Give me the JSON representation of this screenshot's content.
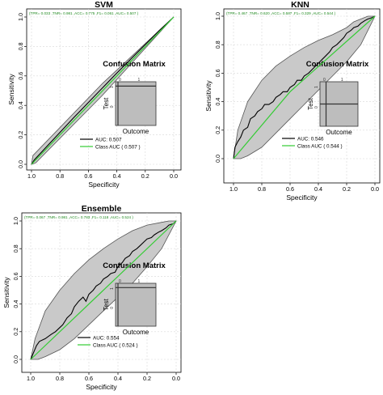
{
  "chart_data": [
    {
      "type": "line",
      "title": "SVM",
      "xlabel": "Specificity",
      "ylabel": "Sensitivity",
      "xlim": [
        1.0,
        0.0
      ],
      "ylim": [
        0.0,
        1.0
      ],
      "x_ticks": [
        "1.0",
        "0.8",
        "0.6",
        "0.4",
        "0.2",
        "0.0"
      ],
      "y_ticks": [
        "0.0",
        "0.2",
        "0.4",
        "0.6",
        "0.8",
        "1.0"
      ],
      "grid": true,
      "metrics_text": "(TPR= 0.033 ,TNR= 0.981 ,ACC= 0.775 ,F1= 0.061 ,AUC= 0.507 )",
      "confusion_matrix": {
        "title": "Confusion Matrix",
        "xlabel": "Outcome",
        "ylabel": "Test",
        "col_labels": [
          "0",
          "1"
        ],
        "row_labels": [
          "1",
          "0"
        ],
        "col_split": 0.06,
        "row_split": 0.1
      },
      "legend": [
        {
          "label": "AUC:  0.507",
          "color": "#000000"
        },
        {
          "label": "Class AUC ( 0.507 )",
          "color": "#33cc33"
        }
      ],
      "legend_position": "bottom-right",
      "series": [
        {
          "name": "AUC:  0.507",
          "color": "#000000",
          "spec": [
            1.0,
            0.98,
            0.7,
            0.4,
            0.1,
            0.0
          ],
          "sens": [
            0.0,
            0.03,
            0.32,
            0.62,
            0.91,
            1.0
          ]
        },
        {
          "name": "Class AUC ( 0.507 )",
          "color": "#33cc33",
          "spec": [
            1.0,
            0.0
          ],
          "sens": [
            0.0,
            1.0
          ]
        }
      ],
      "ci_upper": {
        "spec": [
          1.0,
          0.99,
          0.5,
          0.0
        ],
        "sens": [
          0.0,
          0.06,
          0.55,
          1.0
        ]
      },
      "ci_lower": {
        "spec": [
          1.0,
          0.97,
          0.5,
          0.0
        ],
        "sens": [
          0.0,
          0.01,
          0.47,
          1.0
        ]
      }
    },
    {
      "type": "line",
      "title": "KNN",
      "xlabel": "Specificity",
      "ylabel": "Sensitivity",
      "xlim": [
        1.0,
        0.0
      ],
      "ylim": [
        0.0,
        1.0
      ],
      "x_ticks": [
        "1.0",
        "0.8",
        "0.6",
        "0.4",
        "0.2",
        "0.0"
      ],
      "y_ticks": [
        "0.0",
        "0.2",
        "0.4",
        "0.6",
        "0.8",
        "1.0"
      ],
      "grid": true,
      "metrics_text": "(TPR= 0.467 ,TNR= 0.620 ,ACC= 0.587 ,F1= 0.329 ,AUC= 0.544 )",
      "confusion_matrix": {
        "title": "Confusion Matrix",
        "xlabel": "Outcome",
        "ylabel": "Test",
        "col_labels": [
          "0",
          "1"
        ],
        "row_labels": [
          "1",
          "0"
        ],
        "col_split": 0.16,
        "row_split": 0.5
      },
      "legend": [
        {
          "label": "AUC:  0.546",
          "color": "#000000"
        },
        {
          "label": "Class AUC ( 0.544 )",
          "color": "#33cc33"
        }
      ],
      "legend_position": "bottom-right",
      "series": [
        {
          "name": "AUC:  0.546",
          "color": "#000000",
          "spec": [
            1.0,
            0.99,
            0.97,
            0.95,
            0.93,
            0.9,
            0.88,
            0.85,
            0.83,
            0.8,
            0.78,
            0.75,
            0.72,
            0.7,
            0.67,
            0.65,
            0.62,
            0.6,
            0.57,
            0.55,
            0.52,
            0.5,
            0.47,
            0.45,
            0.42,
            0.4,
            0.37,
            0.35,
            0.32,
            0.3,
            0.27,
            0.25,
            0.22,
            0.2,
            0.17,
            0.15,
            0.12,
            0.1,
            0.07,
            0.05,
            0.02,
            0.0
          ],
          "sens": [
            0.0,
            0.08,
            0.12,
            0.15,
            0.2,
            0.22,
            0.28,
            0.3,
            0.33,
            0.35,
            0.38,
            0.38,
            0.4,
            0.43,
            0.45,
            0.47,
            0.47,
            0.5,
            0.52,
            0.55,
            0.55,
            0.58,
            0.6,
            0.62,
            0.65,
            0.67,
            0.7,
            0.72,
            0.75,
            0.78,
            0.8,
            0.82,
            0.85,
            0.88,
            0.9,
            0.92,
            0.93,
            0.95,
            0.97,
            0.98,
            0.99,
            1.0
          ]
        },
        {
          "name": "Class AUC ( 0.544 )",
          "color": "#33cc33",
          "spec": [
            1.0,
            0.6,
            0.0
          ],
          "sens": [
            0.0,
            0.47,
            1.0
          ]
        }
      ],
      "ci_upper": {
        "spec": [
          1.0,
          0.97,
          0.9,
          0.8,
          0.7,
          0.6,
          0.5,
          0.4,
          0.3,
          0.2,
          0.15,
          0.1,
          0.05,
          0.0
        ],
        "sens": [
          0.0,
          0.2,
          0.4,
          0.55,
          0.65,
          0.72,
          0.78,
          0.83,
          0.87,
          0.92,
          0.96,
          0.98,
          1.0,
          1.0
        ]
      },
      "ci_lower": {
        "spec": [
          1.0,
          0.95,
          0.9,
          0.8,
          0.7,
          0.6,
          0.5,
          0.4,
          0.3,
          0.2,
          0.1,
          0.05,
          0.0
        ],
        "sens": [
          0.0,
          0.0,
          0.02,
          0.08,
          0.18,
          0.28,
          0.38,
          0.48,
          0.58,
          0.68,
          0.8,
          0.9,
          1.0
        ]
      }
    },
    {
      "type": "line",
      "title": "Ensemble",
      "xlabel": "Specificity",
      "ylabel": "Sensitivity",
      "xlim": [
        1.0,
        0.0
      ],
      "ylim": [
        0.0,
        1.0
      ],
      "x_ticks": [
        "1.0",
        "0.8",
        "0.6",
        "0.4",
        "0.2",
        "0.0"
      ],
      "y_ticks": [
        "0.0",
        "0.2",
        "0.4",
        "0.6",
        "0.8",
        "1.0"
      ],
      "grid": true,
      "metrics_text": "(TPR= 0.067 ,TNR= 0.981 ,ACC= 0.783 ,F1= 0.118 ,AUC= 0.524 )",
      "confusion_matrix": {
        "title": "Confusion Matrix",
        "xlabel": "Outcome",
        "ylabel": "Test",
        "col_labels": [
          "0",
          "1"
        ],
        "row_labels": [
          "1",
          "0"
        ],
        "col_split": 0.06,
        "row_split": 0.1
      },
      "legend": [
        {
          "label": "AUC:  0.554",
          "color": "#000000"
        },
        {
          "label": "Class AUC ( 0.524 )",
          "color": "#33cc33"
        }
      ],
      "legend_position": "bottom-right",
      "series": [
        {
          "name": "AUC:  0.554",
          "color": "#000000",
          "spec": [
            1.0,
            0.98,
            0.96,
            0.94,
            0.9,
            0.86,
            0.83,
            0.8,
            0.78,
            0.75,
            0.72,
            0.7,
            0.67,
            0.64,
            0.62,
            0.6,
            0.57,
            0.55,
            0.52,
            0.5,
            0.47,
            0.45,
            0.42,
            0.4,
            0.37,
            0.35,
            0.32,
            0.3,
            0.27,
            0.25,
            0.22,
            0.2,
            0.17,
            0.15,
            0.12,
            0.1,
            0.07,
            0.05,
            0.02,
            0.0
          ],
          "sens": [
            0.0,
            0.05,
            0.1,
            0.13,
            0.15,
            0.18,
            0.2,
            0.23,
            0.25,
            0.3,
            0.33,
            0.38,
            0.42,
            0.45,
            0.42,
            0.47,
            0.5,
            0.53,
            0.55,
            0.58,
            0.6,
            0.62,
            0.63,
            0.67,
            0.7,
            0.73,
            0.75,
            0.78,
            0.8,
            0.82,
            0.85,
            0.87,
            0.88,
            0.9,
            0.92,
            0.93,
            0.95,
            0.97,
            0.98,
            1.0
          ]
        },
        {
          "name": "Class AUC ( 0.524 )",
          "color": "#33cc33",
          "spec": [
            1.0,
            0.0
          ],
          "sens": [
            0.0,
            1.0
          ]
        }
      ],
      "ci_upper": {
        "spec": [
          1.0,
          0.97,
          0.9,
          0.8,
          0.7,
          0.6,
          0.5,
          0.4,
          0.3,
          0.2,
          0.1,
          0.05,
          0.0
        ],
        "sens": [
          0.0,
          0.15,
          0.35,
          0.5,
          0.62,
          0.72,
          0.8,
          0.87,
          0.93,
          0.97,
          0.99,
          1.0,
          1.0
        ]
      },
      "ci_lower": {
        "spec": [
          1.0,
          0.95,
          0.9,
          0.8,
          0.7,
          0.6,
          0.5,
          0.4,
          0.3,
          0.2,
          0.1,
          0.05,
          0.0
        ],
        "sens": [
          0.0,
          0.0,
          0.02,
          0.07,
          0.15,
          0.25,
          0.35,
          0.45,
          0.55,
          0.67,
          0.8,
          0.9,
          1.0
        ]
      }
    }
  ]
}
